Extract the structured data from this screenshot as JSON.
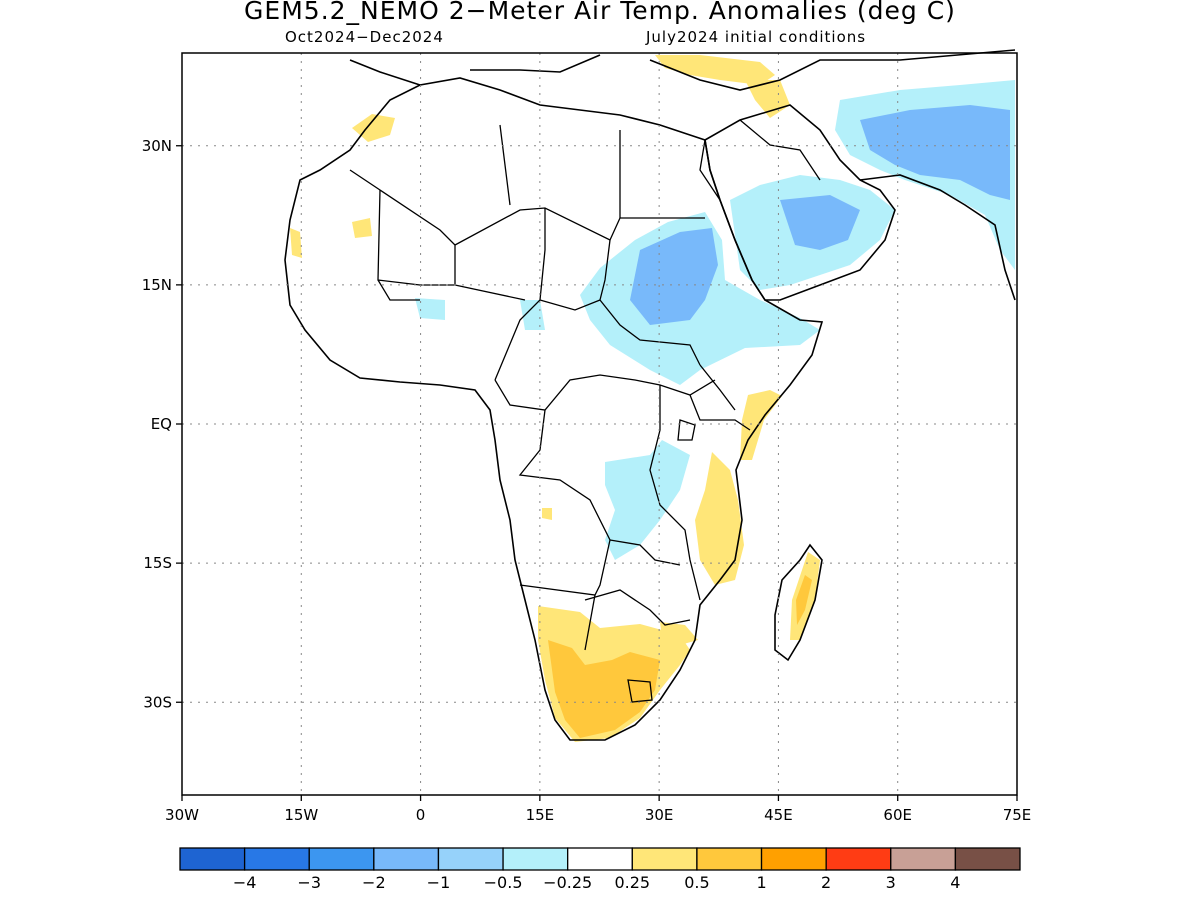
{
  "title": "GEM5.2_NEMO 2−Meter Air Temp. Anomalies (deg C)",
  "subtitle_left": "Oct2024−Dec2024",
  "subtitle_right": "July2024 initial conditions",
  "lon_labels": [
    "30W",
    "15W",
    "0",
    "15E",
    "30E",
    "45E",
    "60E",
    "75E"
  ],
  "lon_values": [
    -30,
    -15,
    0,
    15,
    30,
    45,
    60,
    75
  ],
  "lat_labels": [
    "30N",
    "15N",
    "EQ",
    "15S",
    "30S"
  ],
  "lat_values": [
    30,
    15,
    0,
    -15,
    -30
  ],
  "extent": {
    "lon": [
      -30,
      75
    ],
    "lat": [
      -40,
      40
    ]
  },
  "colorbar": {
    "colors": [
      "#1e64d2",
      "#2878e6",
      "#3c96f0",
      "#78b9fa",
      "#96d2fa",
      "#b4f0fa",
      "#ffffff",
      "#ffe678",
      "#ffc83c",
      "#ffa000",
      "#ff3c14",
      "#c8a096",
      "#785046"
    ],
    "labels": [
      "−4",
      "−3",
      "−2",
      "−1",
      "−0.5",
      "−0.25",
      "0.25",
      "0.5",
      "1",
      "2",
      "3",
      "4"
    ]
  },
  "anomaly_colors": {
    "cool": "#b4f0fa",
    "cooler": "#78b9fa",
    "warm": "#ffe678",
    "warmer": "#ffc83c"
  }
}
